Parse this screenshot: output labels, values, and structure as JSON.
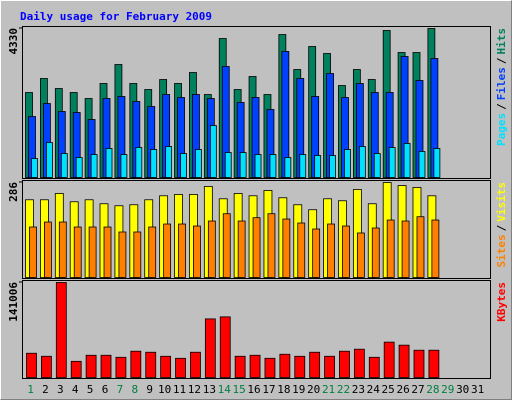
{
  "title": "Daily usage for February 2009",
  "legend_separator": "/",
  "chart_data": [
    {
      "type": "bar",
      "ylim": [
        0,
        4330
      ],
      "yticks": [
        4330
      ],
      "series": [
        {
          "name": "Hits",
          "color": "#00805c",
          "values": [
            2470,
            2877,
            2586,
            2470,
            2296,
            2732,
            3284,
            2732,
            2557,
            2848,
            2732,
            3051,
            2412,
            4039,
            2557,
            2935,
            2412,
            4155,
            3138,
            3807,
            3603,
            2673,
            3138,
            2848,
            4272,
            3632,
            3632,
            4330,
            null,
            null,
            null
          ]
        },
        {
          "name": "Files",
          "color": "#0040ff",
          "values": [
            1772,
            2150,
            1918,
            1889,
            1685,
            2296,
            2354,
            2209,
            2063,
            2412,
            2325,
            2412,
            2296,
            3226,
            2180,
            2325,
            1976,
            3662,
            2877,
            2354,
            3022,
            2325,
            2732,
            2470,
            2470,
            3516,
            2819,
            3458,
            null,
            null,
            null
          ]
        },
        {
          "name": "Pages",
          "color": "#00e0ff",
          "values": [
            552,
            1017,
            697,
            581,
            668,
            843,
            668,
            872,
            814,
            901,
            697,
            814,
            1511,
            726,
            726,
            668,
            668,
            581,
            668,
            639,
            639,
            814,
            901,
            697,
            872,
            988,
            756,
            843,
            null,
            null,
            null
          ]
        }
      ]
    },
    {
      "type": "bar",
      "ylim": [
        0,
        286
      ],
      "yticks": [
        286
      ],
      "series": [
        {
          "name": "Visits",
          "color": "#ffff00",
          "values": [
            234,
            234,
            253,
            228,
            234,
            222,
            216,
            219,
            234,
            246,
            250,
            250,
            274,
            237,
            253,
            246,
            262,
            240,
            219,
            204,
            237,
            231,
            265,
            222,
            286,
            277,
            271,
            246,
            null,
            null,
            null
          ]
        },
        {
          "name": "Sites",
          "color": "#ff8000",
          "values": [
            152,
            167,
            167,
            152,
            152,
            152,
            137,
            137,
            152,
            161,
            161,
            155,
            170,
            192,
            170,
            180,
            192,
            176,
            164,
            146,
            161,
            155,
            134,
            149,
            173,
            170,
            183,
            173,
            null,
            null,
            null
          ]
        }
      ]
    },
    {
      "type": "bar",
      "ylim": [
        0,
        141006
      ],
      "yticks": [
        141006
      ],
      "categories": [
        "1",
        "2",
        "3",
        "4",
        "5",
        "6",
        "7",
        "8",
        "9",
        "10",
        "11",
        "12",
        "13",
        "14",
        "15",
        "16",
        "17",
        "18",
        "19",
        "20",
        "21",
        "22",
        "23",
        "24",
        "25",
        "26",
        "27",
        "28",
        "29",
        "30",
        "31"
      ],
      "category_colors": [
        "#008040",
        "#000000",
        "#000000",
        "#000000",
        "#000000",
        "#000000",
        "#008040",
        "#008040",
        "#000000",
        "#000000",
        "#000000",
        "#000000",
        "#000000",
        "#008040",
        "#008040",
        "#000000",
        "#000000",
        "#000000",
        "#000000",
        "#000000",
        "#008040",
        "#008040",
        "#000000",
        "#000000",
        "#000000",
        "#000000",
        "#000000",
        "#008040",
        "#008040",
        "#000000",
        "#000000"
      ],
      "series": [
        {
          "name": "KBytes",
          "color": "#ff0000",
          "values": [
            36000,
            31500,
            141006,
            24000,
            33000,
            33000,
            30000,
            39000,
            37500,
            31500,
            28500,
            37500,
            87000,
            90000,
            31500,
            33000,
            28500,
            34500,
            31500,
            37500,
            31500,
            39000,
            42000,
            30000,
            52500,
            48000,
            40500,
            40500,
            null,
            null,
            null
          ]
        }
      ]
    }
  ]
}
